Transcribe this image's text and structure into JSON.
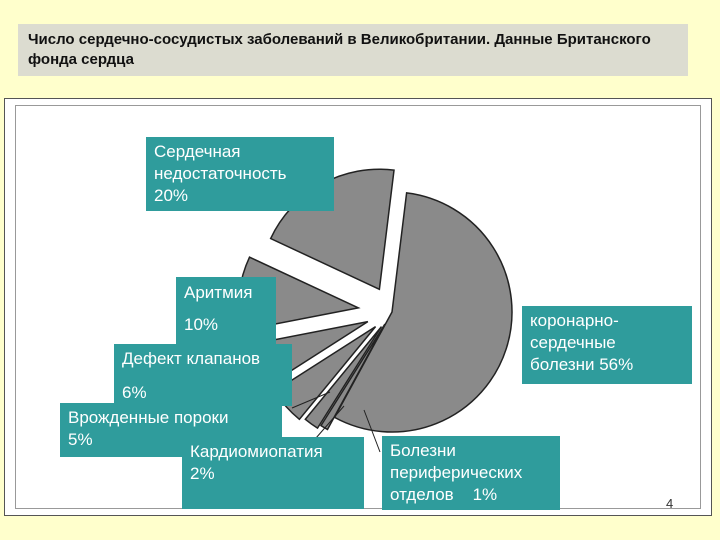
{
  "title": "Число сердечно-сосудистых заболеваний в Великобритании. Данные Британского фонда сердца",
  "page_number": "4",
  "colors": {
    "slice": "#8a8a8a",
    "label_bg": "#2f9c9c",
    "page_bg": "#ffffcc",
    "title_bg": "#dcdcd0"
  },
  "labels": {
    "heart_failure": {
      "line1": "Сердечная",
      "line2": "недостаточность",
      "line3": "20%"
    },
    "arrhythmia": {
      "line1": "Аритмия",
      "line2": "10%"
    },
    "valve_defect": {
      "line1": "Дефект клапанов",
      "line2": "6%"
    },
    "congenital": {
      "line1": "Врожденные пороки",
      "line2": "5%"
    },
    "cardiomyopathy": {
      "line1": "Кардиомиопатия",
      "line2": "2%"
    },
    "peripheral": {
      "line1": "Болезни",
      "line2": "периферических",
      "line3": "отделов    1%"
    },
    "coronary": {
      "line1": "коронарно-",
      "line2": "сердечные",
      "line3": "болезни  56%"
    }
  },
  "chart_data": {
    "type": "pie",
    "title": "",
    "slices": [
      {
        "label": "коронарно-сердечные болезни",
        "value": 56
      },
      {
        "label": "Болезни периферических отделов",
        "value": 1
      },
      {
        "label": "Кардиомиопатия",
        "value": 2
      },
      {
        "label": "Врожденные пороки",
        "value": 5
      },
      {
        "label": "Дефект клапанов",
        "value": 6
      },
      {
        "label": "Аритмия",
        "value": 10
      },
      {
        "label": "Сердечная недостаточность",
        "value": 20
      }
    ]
  }
}
